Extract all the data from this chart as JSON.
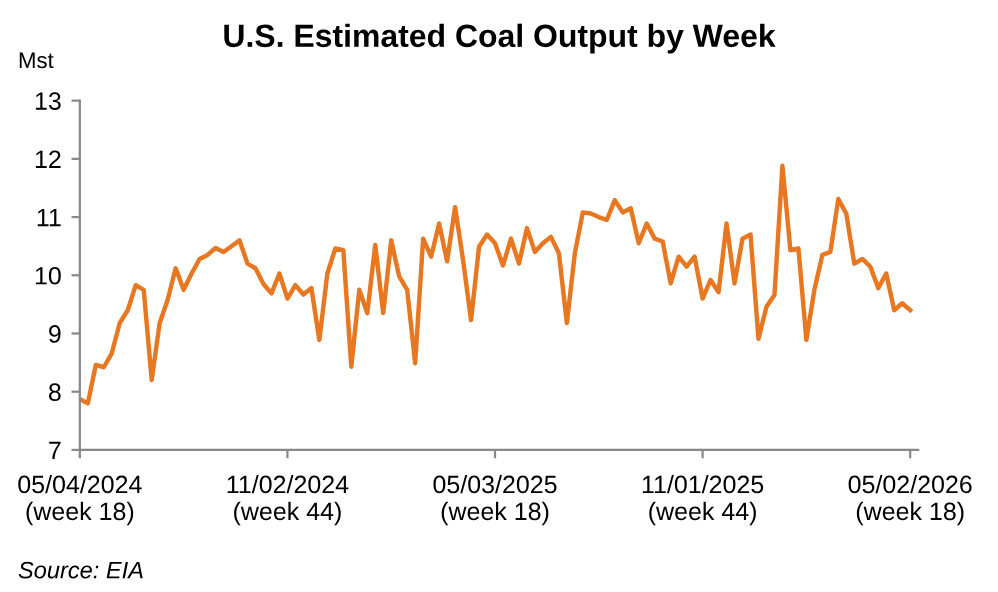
{
  "chart_data": {
    "type": "line",
    "title": "U.S. Estimated Coal Output by Week",
    "ylabel": "Mst",
    "x": [
      "2024-05-04",
      "2024-05-11",
      "2024-05-18",
      "2024-05-25",
      "2024-06-01",
      "2024-06-08",
      "2024-06-15",
      "2024-06-22",
      "2024-06-29",
      "2024-07-06",
      "2024-07-13",
      "2024-07-20",
      "2024-07-27",
      "2024-08-03",
      "2024-08-10",
      "2024-08-17",
      "2024-08-24",
      "2024-08-31",
      "2024-09-07",
      "2024-09-14",
      "2024-09-21",
      "2024-09-28",
      "2024-10-05",
      "2024-10-12",
      "2024-10-19",
      "2024-10-26",
      "2024-11-02",
      "2024-11-09",
      "2024-11-16",
      "2024-11-23",
      "2024-11-30",
      "2024-12-07",
      "2024-12-14",
      "2024-12-21",
      "2024-12-28",
      "2025-01-04",
      "2025-01-11",
      "2025-01-18",
      "2025-01-25",
      "2025-02-01",
      "2025-02-08",
      "2025-02-15",
      "2025-02-22",
      "2025-03-01",
      "2025-03-08",
      "2025-03-15",
      "2025-03-22",
      "2025-03-29",
      "2025-04-05",
      "2025-04-12",
      "2025-04-19",
      "2025-04-26",
      "2025-05-03",
      "2025-05-10",
      "2025-05-17",
      "2025-05-24",
      "2025-05-31",
      "2025-06-07",
      "2025-06-14",
      "2025-06-21",
      "2025-06-28",
      "2025-07-05",
      "2025-07-12",
      "2025-07-19",
      "2025-07-26",
      "2025-08-02",
      "2025-08-09",
      "2025-08-16",
      "2025-08-23",
      "2025-08-30",
      "2025-09-06",
      "2025-09-13",
      "2025-09-20",
      "2025-09-27",
      "2025-10-04",
      "2025-10-11",
      "2025-10-18",
      "2025-10-25",
      "2025-11-01",
      "2025-11-08",
      "2025-11-15",
      "2025-11-22",
      "2025-11-29",
      "2025-12-06",
      "2025-12-13",
      "2025-12-20",
      "2025-12-27",
      "2026-01-03",
      "2026-01-10",
      "2026-01-17",
      "2026-01-24",
      "2026-01-31",
      "2026-02-07",
      "2026-02-14",
      "2026-02-21",
      "2026-02-28",
      "2026-03-07",
      "2026-03-14",
      "2026-03-21",
      "2026-03-28",
      "2026-04-04",
      "2026-04-11",
      "2026-04-18",
      "2026-04-25",
      "2026-05-02"
    ],
    "series": [
      {
        "color": "#e87722",
        "values": [
          7.87,
          7.8,
          8.46,
          8.42,
          8.66,
          9.18,
          9.4,
          9.83,
          9.75,
          8.2,
          9.18,
          9.58,
          10.12,
          9.75,
          10.03,
          10.28,
          10.35,
          10.47,
          10.4,
          10.5,
          10.6,
          10.2,
          10.12,
          9.85,
          9.69,
          10.03,
          9.6,
          9.83,
          9.67,
          9.78,
          8.89,
          10.03,
          10.46,
          10.43,
          8.43,
          9.75,
          9.35,
          10.52,
          9.35,
          10.6,
          9.98,
          9.75,
          8.49,
          10.63,
          10.32,
          10.89,
          10.24,
          11.17,
          10.26,
          9.23,
          10.49,
          10.7,
          10.55,
          10.17,
          10.63,
          10.2,
          10.81,
          10.4,
          10.55,
          10.66,
          10.38,
          9.18,
          10.38,
          11.08,
          11.06,
          11.0,
          10.95,
          11.29,
          11.08,
          11.15,
          10.55,
          10.89,
          10.63,
          10.58,
          9.86,
          10.32,
          10.15,
          10.32,
          9.6,
          9.92,
          9.71,
          10.89,
          9.86,
          10.63,
          10.7,
          8.91,
          9.46,
          9.66,
          11.88,
          10.43,
          10.46,
          8.89,
          9.75,
          10.35,
          10.4,
          11.31,
          11.06,
          10.2,
          10.28,
          10.15,
          9.78,
          10.03,
          9.4,
          9.52,
          9.4
        ]
      }
    ],
    "xlim": [
      "2024-05-04",
      "2026-05-09"
    ],
    "xticks": [
      {
        "value": "2024-05-04",
        "label": "05/04/2024\n(week 18)"
      },
      {
        "value": "2024-11-02",
        "label": "11/02/2024\n(week 44)"
      },
      {
        "value": "2025-05-03",
        "label": "05/03/2025\n(week 18)"
      },
      {
        "value": "2025-11-01",
        "label": "11/01/2025\n(week 44)"
      },
      {
        "value": "2026-05-02",
        "label": "05/02/2026\n(week 18)"
      }
    ],
    "ylim": [
      7,
      13
    ],
    "yticks": [
      7,
      8,
      9,
      10,
      11,
      12,
      13
    ],
    "grid": false,
    "legend": false,
    "line_style": "solid",
    "marker": "none",
    "annotations": [
      "Source: EIA"
    ]
  }
}
